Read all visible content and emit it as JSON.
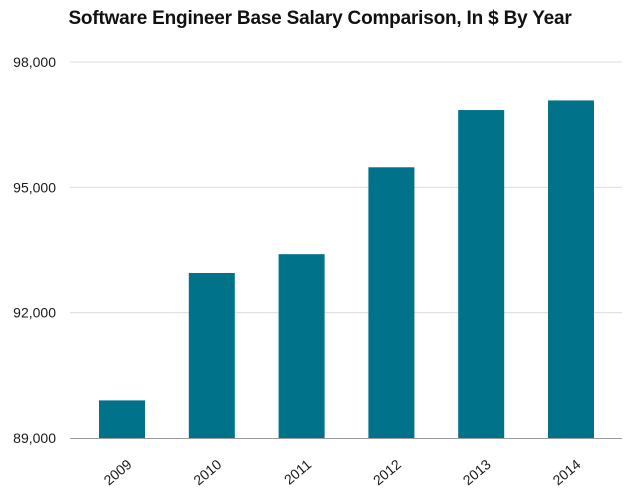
{
  "chart_data": {
    "type": "bar",
    "title": "Software Engineer Base Salary Comparison, In $ By Year",
    "xlabel": "",
    "ylabel": "",
    "categories": [
      "2009",
      "2010",
      "2011",
      "2012",
      "2013",
      "2014"
    ],
    "values": [
      89900,
      92950,
      93400,
      95480,
      96850,
      97080
    ],
    "ylim": [
      89000,
      98000
    ],
    "yticks": [
      89000,
      92000,
      95000,
      98000
    ],
    "ytick_labels": [
      "89,000",
      "92,000",
      "95,000",
      "98,000"
    ],
    "grid": true,
    "legend": "none",
    "bar_color": "#00728a"
  }
}
